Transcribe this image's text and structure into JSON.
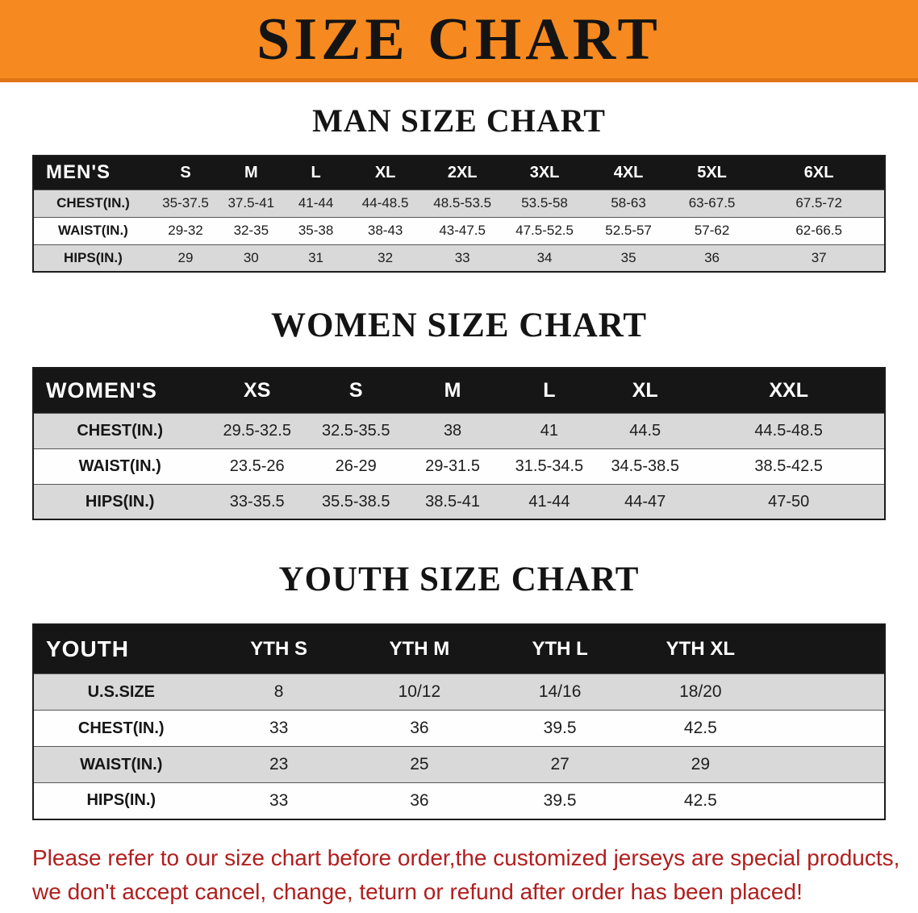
{
  "banner": {
    "title": "SIZE CHART"
  },
  "colors": {
    "banner_orange": "#F6891F",
    "table_header_black": "#161616",
    "row_stripe_gray": "#D9D9D9",
    "note_red": "#B11E1E"
  },
  "chart_data": [
    {
      "type": "table",
      "title": "MAN SIZE CHART",
      "header_label": "MEN'S",
      "columns": [
        "S",
        "M",
        "L",
        "XL",
        "2XL",
        "3XL",
        "4XL",
        "5XL",
        "6XL"
      ],
      "rows": [
        {
          "label": "CHEST(IN.)",
          "values": [
            "35-37.5",
            "37.5-41",
            "41-44",
            "44-48.5",
            "48.5-53.5",
            "53.5-58",
            "58-63",
            "63-67.5",
            "67.5-72"
          ]
        },
        {
          "label": "WAIST(IN.)",
          "values": [
            "29-32",
            "32-35",
            "35-38",
            "38-43",
            "43-47.5",
            "47.5-52.5",
            "52.5-57",
            "57-62",
            "62-66.5"
          ]
        },
        {
          "label": "HIPS(IN.)",
          "values": [
            "29",
            "30",
            "31",
            "32",
            "33",
            "34",
            "35",
            "36",
            "37"
          ]
        }
      ]
    },
    {
      "type": "table",
      "title": "WOMEN SIZE CHART",
      "header_label": "WOMEN'S",
      "columns": [
        "XS",
        "S",
        "M",
        "L",
        "XL",
        "XXL"
      ],
      "rows": [
        {
          "label": "CHEST(IN.)",
          "values": [
            "29.5-32.5",
            "32.5-35.5",
            "38",
            "41",
            "44.5",
            "44.5-48.5"
          ]
        },
        {
          "label": "WAIST(IN.)",
          "values": [
            "23.5-26",
            "26-29",
            "29-31.5",
            "31.5-34.5",
            "34.5-38.5",
            "38.5-42.5"
          ]
        },
        {
          "label": "HIPS(IN.)",
          "values": [
            "33-35.5",
            "35.5-38.5",
            "38.5-41",
            "41-44",
            "44-47",
            "47-50"
          ]
        }
      ]
    },
    {
      "type": "table",
      "title": "YOUTH SIZE CHART",
      "header_label": "YOUTH",
      "columns": [
        "YTH S",
        "YTH M",
        "YTH L",
        "YTH XL"
      ],
      "rows": [
        {
          "label": "U.S.SIZE",
          "values": [
            "8",
            "10/12",
            "14/16",
            "18/20"
          ]
        },
        {
          "label": "CHEST(IN.)",
          "values": [
            "33",
            "36",
            "39.5",
            "42.5"
          ]
        },
        {
          "label": "WAIST(IN.)",
          "values": [
            "23",
            "25",
            "27",
            "29"
          ]
        },
        {
          "label": "HIPS(IN.)",
          "values": [
            "33",
            "36",
            "39.5",
            "42.5"
          ]
        }
      ]
    }
  ],
  "footer": {
    "lines": [
      "Please refer to our size chart before order,the customized jerseys are special products,",
      "we don't accept cancel, change, teturn or refund after order has been placed!"
    ]
  }
}
